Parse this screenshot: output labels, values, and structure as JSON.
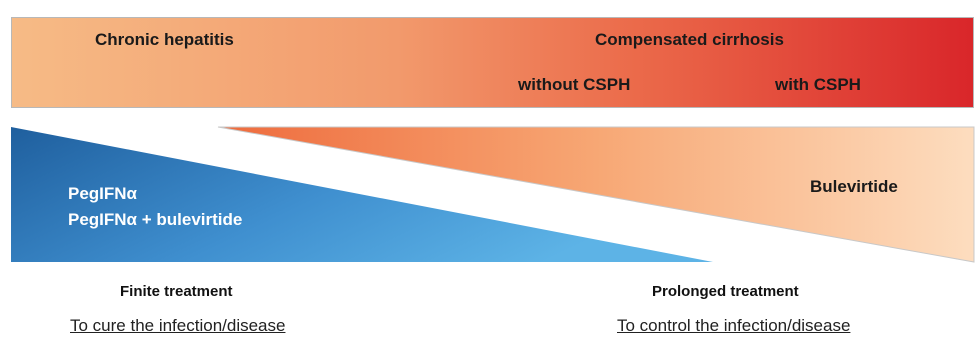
{
  "disease_stages": {
    "chronic_hepatitis": "Chronic hepatitis",
    "compensated_cirrhosis": "Compensated cirrhosis",
    "without_cspph": "without CSPH",
    "with_cspph": "with  CSPH"
  },
  "finite_arm": {
    "line1": "PegIFNα",
    "line2": "PegIFNα + bulevirtide",
    "caption": "Finite treatment",
    "goal": "To cure the infection/disease"
  },
  "prolonged_arm": {
    "drug": "Bulevirtide",
    "caption": "Prolonged treatment",
    "goal": "To control the infection/disease"
  },
  "colors": {
    "bar_start": "#f6bb86",
    "bar_end": "#d9262a",
    "blue_dark": "#1f5f9e",
    "blue_light": "#4da6df",
    "orange_dark": "#ee6b3d",
    "orange_light": "#fbd5b3"
  }
}
